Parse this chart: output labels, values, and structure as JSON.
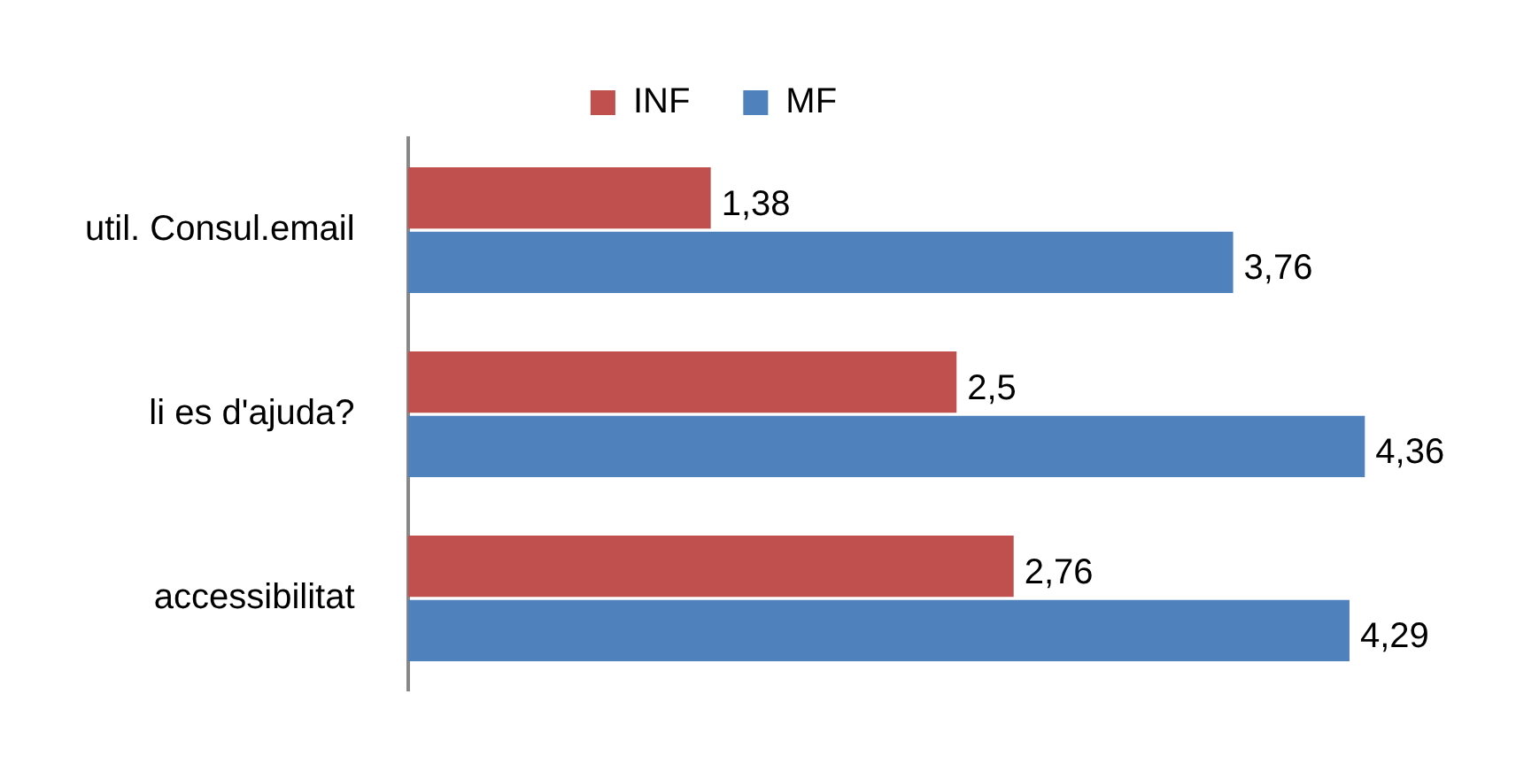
{
  "chart_data": {
    "type": "bar",
    "orientation": "horizontal",
    "categories": [
      "util. Consul.email",
      "li es d'ajuda?",
      "accessibilitat"
    ],
    "series": [
      {
        "name": "INF",
        "color": "#c0504d",
        "values": [
          1.38,
          2.5,
          2.76
        ],
        "value_labels": [
          "1,38",
          "2,5",
          "2,76"
        ]
      },
      {
        "name": "MF",
        "color": "#4f81bd",
        "values": [
          3.76,
          4.36,
          4.29
        ],
        "value_labels": [
          "3,76",
          "4,36",
          "4,29"
        ]
      }
    ],
    "legend": "top",
    "grid": false,
    "tick_labels": "y"
  }
}
